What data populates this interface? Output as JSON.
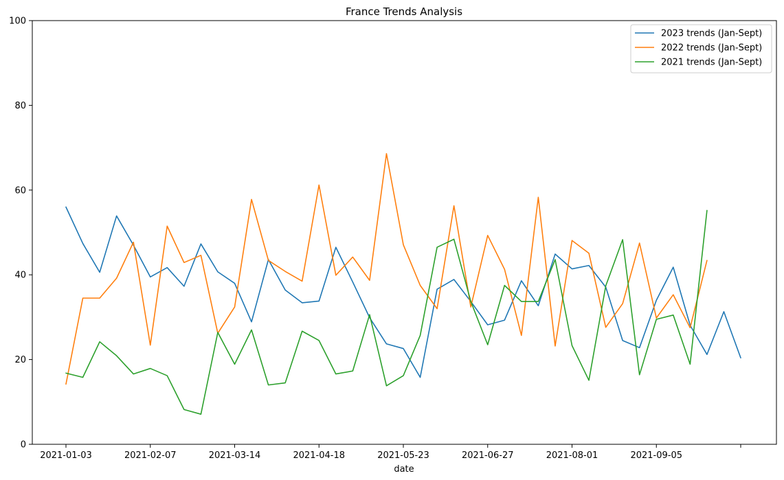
{
  "chart_data": {
    "type": "line",
    "title": "France Trends Analysis",
    "xlabel": "date",
    "ylabel": "",
    "ylim": [
      0,
      100
    ],
    "y_ticks": [
      0,
      20,
      40,
      60,
      80,
      100
    ],
    "x_start": "2021-01-03",
    "x_step_days": 7,
    "x_tick_labels": [
      "2021-01-03",
      "2021-02-07",
      "2021-03-14",
      "2021-04-18",
      "2021-05-23",
      "2021-06-27",
      "2021-08-01",
      "2021-09-05",
      ""
    ],
    "grid": false,
    "legend_position": "top-right",
    "series": [
      {
        "name": "2023 trends (Jan-Sept)",
        "color": "#1f77b4",
        "values": [
          56,
          47.4,
          40.6,
          53.9,
          47,
          39.5,
          41.7,
          37.3,
          47.3,
          40.7,
          38,
          28.9,
          43.6,
          36.4,
          33.4,
          33.8,
          46.5,
          38.3,
          29.9,
          23.7,
          22.6,
          15.8,
          36.6,
          38.9,
          33.7,
          28.2,
          29.3,
          38.6,
          32.7,
          44.9,
          41.4,
          42.2,
          37.1,
          24.5,
          22.8,
          34,
          41.8,
          28.1,
          21.2,
          31.3,
          20.4
        ]
      },
      {
        "name": "2022 trends (Jan-Sept)",
        "color": "#ff7f0e",
        "values": [
          14.2,
          34.5,
          34.5,
          39.2,
          47.7,
          23.4,
          51.5,
          42.9,
          44.6,
          26.2,
          32.4,
          57.8,
          43.4,
          40.8,
          38.5,
          61.2,
          39.9,
          44.2,
          38.7,
          68.6,
          47.1,
          37.5,
          32,
          56.3,
          32.4,
          49.3,
          41.3,
          25.7,
          58.3,
          23.2,
          48.1,
          45.1,
          27.6,
          33.2,
          47.5,
          29.8,
          35.3,
          27.5,
          43.4
        ]
      },
      {
        "name": "2021 trends (Jan-Sept)",
        "color": "#2ca02c",
        "values": [
          16.8,
          15.8,
          24.2,
          20.9,
          16.6,
          17.9,
          16.2,
          8.2,
          7.1,
          26.4,
          18.9,
          27,
          14,
          14.5,
          26.7,
          24.5,
          16.6,
          17.3,
          30.6,
          13.8,
          16.2,
          25.7,
          46.5,
          48.4,
          33.7,
          23.5,
          37.5,
          33.7,
          33.7,
          43.6,
          23.3,
          15.1,
          37.4,
          48.3,
          16.4,
          29.5,
          30.5,
          18.9,
          55.2
        ]
      }
    ]
  }
}
